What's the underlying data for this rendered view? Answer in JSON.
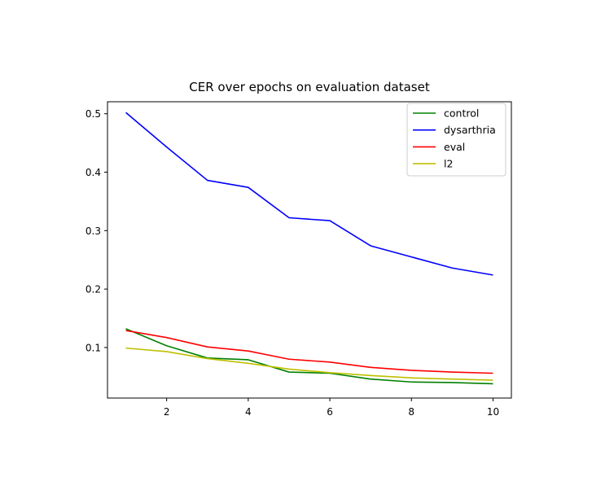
{
  "chart_data": {
    "type": "line",
    "title": "CER over epochs on evaluation dataset",
    "xlabel": "",
    "ylabel": "",
    "x": [
      1,
      2,
      3,
      4,
      5,
      6,
      7,
      8,
      9,
      10
    ],
    "xlim": [
      0.55,
      10.45
    ],
    "ylim": [
      0.0135,
      0.5205
    ],
    "xticks": [
      2,
      4,
      6,
      8,
      10
    ],
    "xtick_labels": [
      "2",
      "4",
      "6",
      "8",
      "10"
    ],
    "yticks": [
      0.1,
      0.2,
      0.3,
      0.4,
      0.5
    ],
    "ytick_labels": [
      "0.1",
      "0.2",
      "0.3",
      "0.4",
      "0.5"
    ],
    "grid": false,
    "legend_position": "top-right",
    "series": [
      {
        "name": "control",
        "color": "#008000",
        "values": [
          0.132,
          0.103,
          0.082,
          0.079,
          0.058,
          0.056,
          0.046,
          0.041,
          0.04,
          0.038
        ]
      },
      {
        "name": "dysarthria",
        "color": "#0000ff",
        "values": [
          0.502,
          0.443,
          0.386,
          0.374,
          0.322,
          0.317,
          0.274,
          0.255,
          0.236,
          0.224
        ]
      },
      {
        "name": "eval",
        "color": "#ff0000",
        "values": [
          0.129,
          0.117,
          0.101,
          0.094,
          0.08,
          0.075,
          0.066,
          0.061,
          0.058,
          0.056
        ]
      },
      {
        "name": "l2",
        "color": "#bfbf00",
        "values": [
          0.099,
          0.093,
          0.081,
          0.073,
          0.063,
          0.057,
          0.052,
          0.048,
          0.046,
          0.044
        ]
      }
    ]
  }
}
